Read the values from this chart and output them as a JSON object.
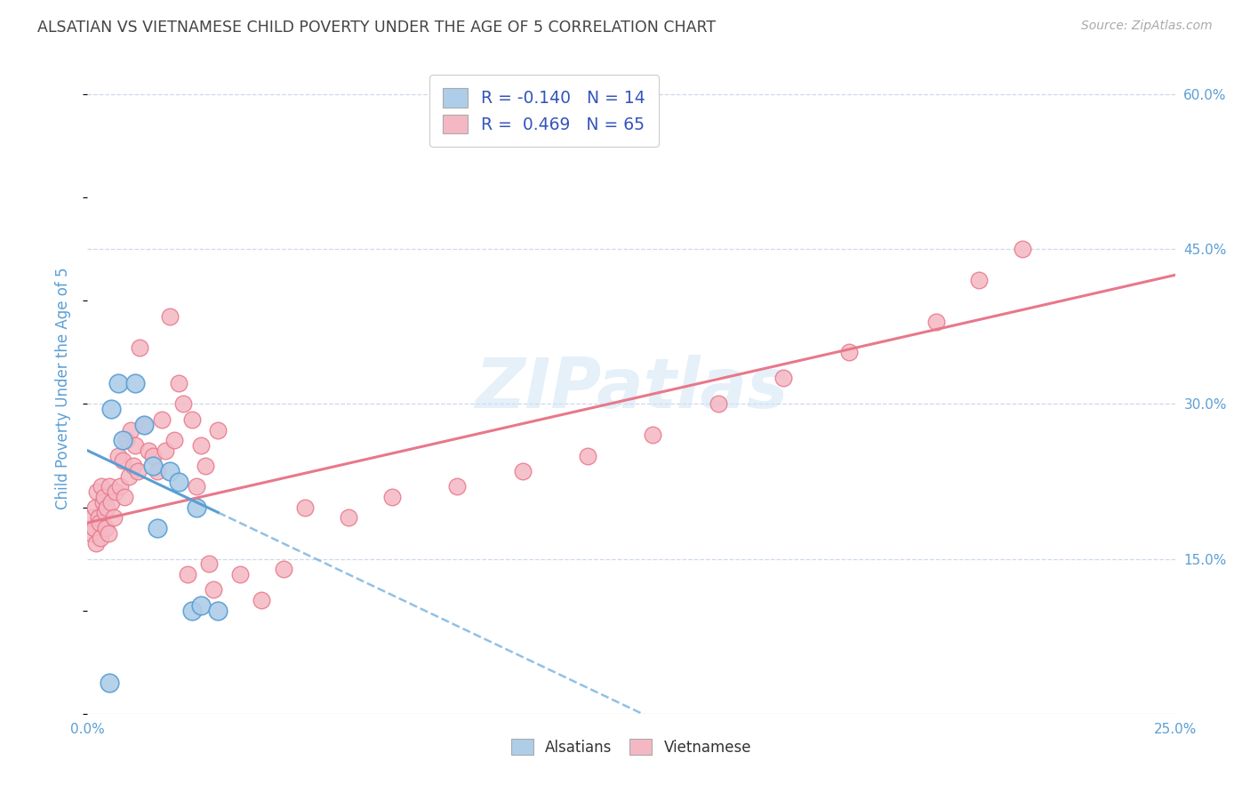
{
  "title": "ALSATIAN VS VIETNAMESE CHILD POVERTY UNDER THE AGE OF 5 CORRELATION CHART",
  "source": "Source: ZipAtlas.com",
  "ylabel": "Child Poverty Under the Age of 5",
  "alsatian_color": "#aecde8",
  "alsatian_edge_color": "#5a9fd4",
  "vietnamese_color": "#f4b8c4",
  "vietnamese_edge_color": "#e8788a",
  "watermark": "ZIPatlas",
  "background_color": "#ffffff",
  "grid_color": "#c8d4e8",
  "axis_label_color": "#5b9fd4",
  "legend_label_color": "#3355bb",
  "alsatian_x": [
    0.5,
    0.55,
    0.7,
    0.8,
    1.1,
    1.3,
    1.5,
    1.6,
    1.9,
    2.1,
    2.4,
    2.5,
    2.6,
    3.0
  ],
  "alsatian_y": [
    3.0,
    29.5,
    32.0,
    26.5,
    32.0,
    28.0,
    24.0,
    18.0,
    23.5,
    22.5,
    10.0,
    20.0,
    10.5,
    10.0
  ],
  "vietnamese_x": [
    0.1,
    0.12,
    0.15,
    0.18,
    0.2,
    0.22,
    0.25,
    0.28,
    0.3,
    0.32,
    0.35,
    0.38,
    0.4,
    0.42,
    0.45,
    0.48,
    0.5,
    0.55,
    0.6,
    0.65,
    0.7,
    0.75,
    0.8,
    0.85,
    0.9,
    0.95,
    1.0,
    1.05,
    1.1,
    1.15,
    1.2,
    1.3,
    1.4,
    1.5,
    1.6,
    1.7,
    1.8,
    1.9,
    2.0,
    2.1,
    2.2,
    2.3,
    2.4,
    2.5,
    2.6,
    2.7,
    2.8,
    2.9,
    3.0,
    3.5,
    4.0,
    4.5,
    5.0,
    6.0,
    7.0,
    8.5,
    10.0,
    11.5,
    13.0,
    14.5,
    16.0,
    17.5,
    19.5,
    20.5,
    21.5
  ],
  "vietnamese_y": [
    17.5,
    19.0,
    18.0,
    20.0,
    16.5,
    21.5,
    19.0,
    18.5,
    17.0,
    22.0,
    20.5,
    21.0,
    19.5,
    18.0,
    20.0,
    17.5,
    22.0,
    20.5,
    19.0,
    21.5,
    25.0,
    22.0,
    24.5,
    21.0,
    26.5,
    23.0,
    27.5,
    24.0,
    26.0,
    23.5,
    35.5,
    28.0,
    25.5,
    25.0,
    23.5,
    28.5,
    25.5,
    38.5,
    26.5,
    32.0,
    30.0,
    13.5,
    28.5,
    22.0,
    26.0,
    24.0,
    14.5,
    12.0,
    27.5,
    13.5,
    11.0,
    14.0,
    20.0,
    19.0,
    21.0,
    22.0,
    23.5,
    25.0,
    27.0,
    30.0,
    32.5,
    35.0,
    38.0,
    42.0,
    45.0
  ],
  "als_trend_x0": 0.0,
  "als_trend_y0": 25.5,
  "als_trend_x1": 3.0,
  "als_trend_y1": 19.5,
  "vie_trend_x0": 0.0,
  "vie_trend_y0": 18.5,
  "vie_trend_x1": 25.0,
  "vie_trend_y1": 42.5,
  "x_min": 0.0,
  "x_max": 25.0,
  "y_min": 0.0,
  "y_max": 63.0
}
